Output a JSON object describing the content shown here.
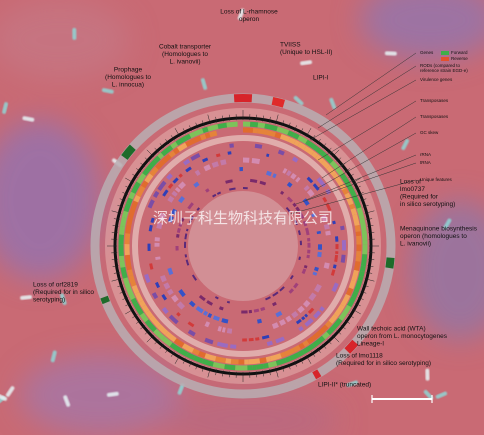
{
  "annotations": [
    {
      "lines": [
        "Loss of L-rhamnose",
        "operon"
      ]
    },
    {
      "lines": [
        "Cobalt transporter",
        "(Homologues to",
        "L. ivanovii)"
      ]
    },
    {
      "lines": [
        "TVIISS",
        "(Unique to HSL-II)"
      ]
    },
    {
      "lines": [
        "LIPI-I"
      ]
    },
    {
      "lines": [
        "Prophage",
        "(Homologues to",
        "L. innocua)"
      ]
    },
    {
      "lines": [
        "Loss of",
        "lmo0737",
        "(Required for",
        "in silico serotyping)"
      ]
    },
    {
      "lines": [
        "Menaquinone biosynthesis",
        "operon (homologues to",
        "L. ivanovii)"
      ]
    },
    {
      "lines": [
        "Loss of orf2819",
        "(Required for in silico",
        "serotyping)"
      ]
    },
    {
      "lines": [
        "Wall techoic acid (WTA)",
        "operon from L. monocytogenes",
        "Lineage-I"
      ]
    },
    {
      "lines": [
        "Loss of lmo1118",
        "(Required for in silico serotyping)"
      ]
    },
    {
      "lines": [
        "LIPI-II* (truncated)"
      ]
    }
  ],
  "legend": [
    "Genes",
    "Forward",
    "Reverse",
    "RODs (compared to",
    "reference strain EGD-e)",
    "Virulence genes",
    "Transposases",
    "Transposases",
    "GC skew",
    "rRNA",
    "tRNA",
    "Unique features"
  ],
  "watermark": "深圳子科生物科技有限公司"
}
